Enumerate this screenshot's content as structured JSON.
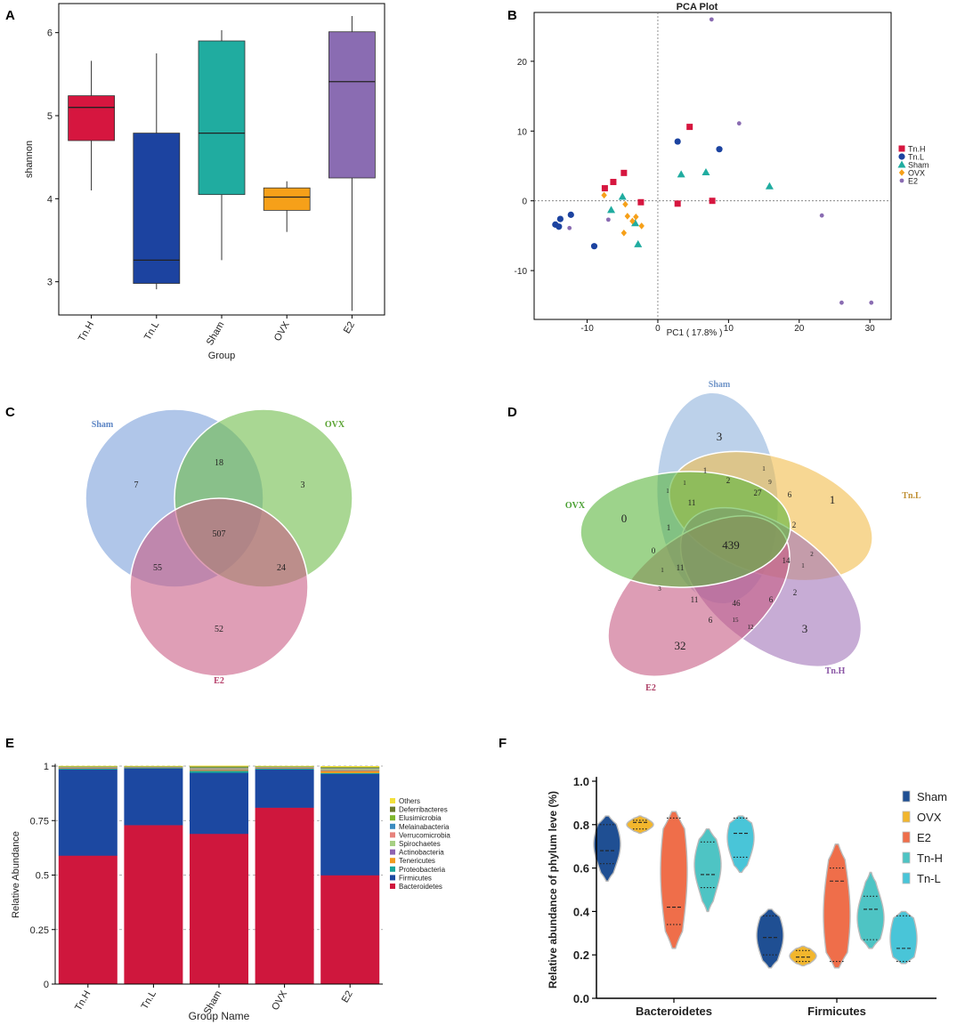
{
  "panels": {
    "a": "A",
    "b": "B",
    "c": "C",
    "d": "D",
    "e": "E",
    "f": "F"
  },
  "chart_data": [
    {
      "panel": "A",
      "type": "box",
      "xlabel": "Group",
      "ylabel": "shannon",
      "ylim": [
        2.6,
        6.35
      ],
      "yticks": [
        3,
        4,
        5,
        6
      ],
      "colors": {
        "Tn.H": "#d6163f",
        "Tn.L": "#1c43a0",
        "Sham": "#20aca0",
        "OVX": "#f6a019",
        "E2": "#8a6cb2"
      },
      "groups": [
        {
          "name": "Tn.H",
          "min": 4.1,
          "q1": 4.7,
          "median": 5.1,
          "q3": 5.24,
          "max": 5.66
        },
        {
          "name": "Tn.L",
          "min": 2.91,
          "q1": 2.98,
          "median": 3.26,
          "q3": 4.79,
          "max": 5.75
        },
        {
          "name": "Sham",
          "min": 3.26,
          "q1": 4.05,
          "median": 4.79,
          "q3": 5.9,
          "max": 6.03
        },
        {
          "name": "OVX",
          "min": 3.6,
          "q1": 3.86,
          "median": 4.02,
          "q3": 4.13,
          "max": 4.21
        },
        {
          "name": "E2",
          "min": 2.65,
          "q1": 4.25,
          "median": 5.41,
          "q3": 6.01,
          "max": 6.2
        }
      ]
    },
    {
      "panel": "B",
      "type": "scatter",
      "title": "PCA Plot",
      "xlabel": "PC1 ( 17.8% )",
      "xlim": [
        -17.5,
        33
      ],
      "ylim": [
        -17,
        27
      ],
      "xticks": [
        -10,
        0,
        10,
        20,
        30
      ],
      "yticks": [
        -10,
        0,
        10,
        20
      ],
      "series": [
        {
          "name": "Tn.H",
          "marker": "square",
          "color": "#d6163f",
          "points": [
            [
              -7.5,
              1.8
            ],
            [
              -6.3,
              2.7
            ],
            [
              -4.8,
              4.0
            ],
            [
              -2.4,
              -0.2
            ],
            [
              2.8,
              -0.4
            ],
            [
              4.5,
              10.6
            ],
            [
              7.7,
              0.0
            ]
          ]
        },
        {
          "name": "Tn.L",
          "marker": "circle",
          "color": "#1c43a0",
          "points": [
            [
              -14.5,
              -3.4
            ],
            [
              -14.0,
              -3.7
            ],
            [
              -13.8,
              -2.6
            ],
            [
              -12.3,
              -2.0
            ],
            [
              -9.0,
              -6.5
            ],
            [
              2.8,
              8.5
            ],
            [
              8.7,
              7.4
            ]
          ]
        },
        {
          "name": "Sham",
          "marker": "triangle",
          "color": "#20aca0",
          "points": [
            [
              -6.6,
              -1.3
            ],
            [
              -5.0,
              0.6
            ],
            [
              -3.2,
              -3.2
            ],
            [
              -2.8,
              -6.2
            ],
            [
              3.3,
              3.8
            ],
            [
              6.8,
              4.1
            ],
            [
              15.8,
              2.1
            ]
          ]
        },
        {
          "name": "OVX",
          "marker": "diamond",
          "color": "#f6a019",
          "points": [
            [
              -7.6,
              0.8
            ],
            [
              -4.6,
              -0.5
            ],
            [
              -4.3,
              -2.2
            ],
            [
              -3.6,
              -2.9
            ],
            [
              -3.1,
              -2.3
            ],
            [
              -2.3,
              -3.6
            ],
            [
              -4.8,
              -4.6
            ]
          ]
        },
        {
          "name": "E2",
          "marker": "smallcircle",
          "color": "#8a6cb2",
          "points": [
            [
              -12.5,
              -3.9
            ],
            [
              -7.0,
              -2.7
            ],
            [
              7.6,
              26.0
            ],
            [
              11.5,
              11.1
            ],
            [
              23.2,
              -2.1
            ],
            [
              26.0,
              -14.6
            ],
            [
              30.2,
              -14.6
            ]
          ]
        }
      ]
    },
    {
      "panel": "C",
      "type": "venn",
      "sets": [
        {
          "name": "Sham",
          "color": "#7ba0da",
          "label_color": "#5b84c4"
        },
        {
          "name": "OVX",
          "color": "#6fbd4b",
          "label_color": "#5aa332"
        },
        {
          "name": "E2",
          "color": "#c95e86",
          "label_color": "#b6416b"
        }
      ],
      "regions": {
        "Sham": "7",
        "OVX": "3",
        "E2": "52",
        "Sham&OVX": "18",
        "Sham&E2": "55",
        "OVX&E2": "24",
        "all": "507"
      }
    },
    {
      "panel": "D",
      "type": "venn",
      "sets": [
        {
          "name": "Sham",
          "color": "#8fb2dc",
          "label_color": "#6f94c8"
        },
        {
          "name": "OVX",
          "color": "#5bb53d",
          "label_color": "#4aa033"
        },
        {
          "name": "E2",
          "color": "#c65c84",
          "label_color": "#ac3d64"
        },
        {
          "name": "Tn.H",
          "color": "#a274b9",
          "label_color": "#8a55a5"
        },
        {
          "name": "Tn.L",
          "color": "#f1bd4b",
          "label_color": "#c09034"
        }
      ],
      "unique": {
        "Sham": "3",
        "OVX": "0",
        "E2": "32",
        "Tn.H": "3",
        "Tn.L": "1"
      },
      "core": "439",
      "overlaps": [
        "1",
        "2",
        "1",
        "1",
        "9",
        "27",
        "6",
        "1",
        "11",
        "2",
        "1",
        "2",
        "0",
        "1",
        "11",
        "14",
        "1",
        "3",
        "11",
        "46",
        "6",
        "2",
        "6",
        "15",
        "12"
      ]
    },
    {
      "panel": "E",
      "type": "stacked_bar",
      "xlabel": "Group Name",
      "ylabel": "Relative Abundance",
      "ylim": [
        0,
        1
      ],
      "yticks": [
        0,
        0.25,
        0.5,
        0.75,
        1
      ],
      "ytick_labels": [
        "0",
        "0.25",
        "0.5",
        "0.75",
        "1"
      ],
      "categories": [
        "Tn.H",
        "Tn.L",
        "Sham",
        "OVX",
        "E2"
      ],
      "series": [
        {
          "name": "Bacteroidetes",
          "color": "#cf173d",
          "values": [
            0.59,
            0.73,
            0.69,
            0.81,
            0.5
          ]
        },
        {
          "name": "Firmicutes",
          "color": "#1c48a1",
          "values": [
            0.395,
            0.26,
            0.28,
            0.175,
            0.465
          ]
        },
        {
          "name": "Proteobacteria",
          "color": "#1aa59b",
          "values": [
            0.004,
            0.002,
            0.009,
            0.004,
            0.004
          ]
        },
        {
          "name": "Tenericutes",
          "color": "#f29a1f",
          "values": [
            0.002,
            0.001,
            0.004,
            0.002,
            0.01
          ]
        },
        {
          "name": "Actinobacteria",
          "color": "#8e62b0",
          "values": [
            0.002,
            0.001,
            0.003,
            0.002,
            0.003
          ]
        },
        {
          "name": "Spirochaetes",
          "color": "#a6cf83",
          "values": [
            0.002,
            0.001,
            0.004,
            0.002,
            0.006
          ]
        },
        {
          "name": "Verrucomicrobia",
          "color": "#e7827c",
          "values": [
            0.001,
            0.001,
            0.002,
            0.001,
            0.002
          ]
        },
        {
          "name": "Melainabacteria",
          "color": "#3b8bc0",
          "values": [
            0.001,
            0.001,
            0.002,
            0.001,
            0.002
          ]
        },
        {
          "name": "Elusimicrobia",
          "color": "#7fb72d",
          "values": [
            0.001,
            0.001,
            0.002,
            0.001,
            0.002
          ]
        },
        {
          "name": "Deferribacteres",
          "color": "#6b7a2c",
          "values": [
            0.001,
            0.001,
            0.003,
            0.001,
            0.002
          ]
        },
        {
          "name": "Others",
          "color": "#f3e03b",
          "values": [
            0.002,
            0.002,
            0.003,
            0.002,
            0.004
          ]
        }
      ]
    },
    {
      "panel": "F",
      "type": "violin",
      "ylabel": "Relative abundance of phylum leve (%)",
      "ylim": [
        0,
        1
      ],
      "yticks": [
        0,
        0.2,
        0.4,
        0.6,
        0.8,
        1
      ],
      "ytick_labels": [
        "0.0",
        "0.2",
        "0.4",
        "0.6",
        "0.8",
        "1.0"
      ],
      "categories": [
        "Bacteroidetes",
        "Firmicutes"
      ],
      "groups": [
        {
          "name": "Sham",
          "color": "#1f4f93"
        },
        {
          "name": "OVX",
          "color": "#f2b62d"
        },
        {
          "name": "E2",
          "color": "#ef6e4a"
        },
        {
          "name": "Tn-H",
          "color": "#4ec4c4"
        },
        {
          "name": "Tn-L",
          "color": "#49c5d8"
        }
      ],
      "violins": [
        {
          "category": "Bacteroidetes",
          "group": "Sham",
          "min": 0.54,
          "max": 0.84,
          "q1": 0.62,
          "median": 0.68,
          "q3": 0.8
        },
        {
          "category": "Bacteroidetes",
          "group": "OVX",
          "min": 0.76,
          "max": 0.84,
          "q1": 0.78,
          "median": 0.81,
          "q3": 0.82
        },
        {
          "category": "Bacteroidetes",
          "group": "E2",
          "min": 0.23,
          "max": 0.86,
          "q1": 0.34,
          "median": 0.42,
          "q3": 0.83
        },
        {
          "category": "Bacteroidetes",
          "group": "Tn-H",
          "min": 0.4,
          "max": 0.78,
          "q1": 0.51,
          "median": 0.57,
          "q3": 0.72
        },
        {
          "category": "Bacteroidetes",
          "group": "Tn-L",
          "min": 0.58,
          "max": 0.84,
          "q1": 0.65,
          "median": 0.76,
          "q3": 0.83
        },
        {
          "category": "Firmicutes",
          "group": "Sham",
          "min": 0.14,
          "max": 0.41,
          "q1": 0.2,
          "median": 0.28,
          "q3": 0.38
        },
        {
          "category": "Firmicutes",
          "group": "OVX",
          "min": 0.15,
          "max": 0.24,
          "q1": 0.17,
          "median": 0.19,
          "q3": 0.22
        },
        {
          "category": "Firmicutes",
          "group": "E2",
          "min": 0.14,
          "max": 0.71,
          "q1": 0.17,
          "median": 0.54,
          "q3": 0.6
        },
        {
          "category": "Firmicutes",
          "group": "Tn-H",
          "min": 0.23,
          "max": 0.58,
          "q1": 0.27,
          "median": 0.41,
          "q3": 0.47
        },
        {
          "category": "Firmicutes",
          "group": "Tn-L",
          "min": 0.16,
          "max": 0.4,
          "q1": 0.17,
          "median": 0.23,
          "q3": 0.38
        }
      ]
    }
  ]
}
